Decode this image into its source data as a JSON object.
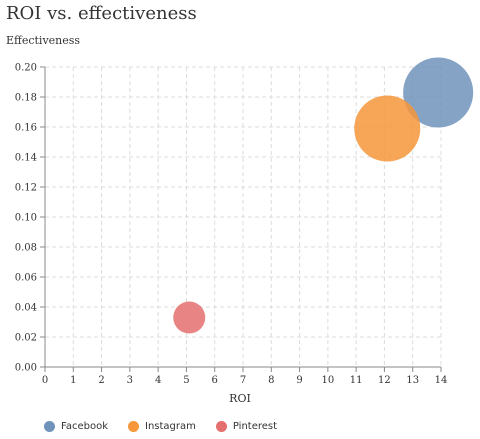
{
  "chart_data": {
    "type": "scatter",
    "title": "ROI vs. effectiveness",
    "xlabel": "ROI",
    "ylabel": "Effectiveness",
    "xlim": [
      0,
      14
    ],
    "ylim": [
      0,
      0.2
    ],
    "x_ticks": [
      "0",
      "1",
      "2",
      "3",
      "4",
      "5",
      "6",
      "7",
      "8",
      "9",
      "10",
      "11",
      "12",
      "13",
      "14"
    ],
    "y_ticks": [
      "0.00",
      "0.02",
      "0.04",
      "0.06",
      "0.08",
      "0.10",
      "0.12",
      "0.14",
      "0.16",
      "0.18",
      "0.20"
    ],
    "grid": true,
    "legend_position": "bottom-left",
    "series": [
      {
        "name": "Facebook",
        "x": 13.9,
        "y": 0.183,
        "size": 3.5,
        "color": "#6f93bb"
      },
      {
        "name": "Instagram",
        "x": 12.1,
        "y": 0.159,
        "size": 3.3,
        "color": "#f6973b"
      },
      {
        "name": "Pinterest",
        "x": 5.1,
        "y": 0.033,
        "size": 1.6,
        "color": "#e56e6e"
      }
    ]
  }
}
